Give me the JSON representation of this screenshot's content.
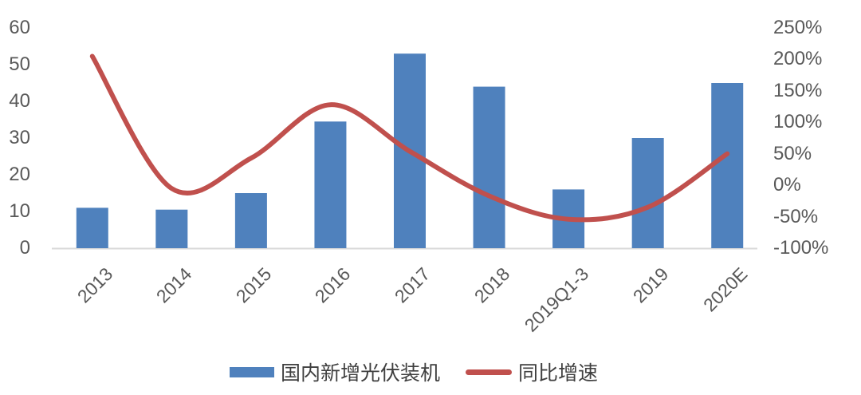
{
  "chart_data": {
    "type": "bar",
    "subtype": "bar+line combo, dual y-axis",
    "categories": [
      "2013",
      "2014",
      "2015",
      "2016",
      "2017",
      "2018",
      "2019Q1-3",
      "2019",
      "2020E"
    ],
    "series": [
      {
        "name": "国内新增光伏装机",
        "type": "bar",
        "axis": "left",
        "values": [
          11,
          10.5,
          15,
          34.5,
          53,
          44,
          16,
          30,
          45
        ]
      },
      {
        "name": "同比增速",
        "type": "line",
        "axis": "right",
        "unit": "%",
        "values": [
          205,
          -5,
          43,
          128,
          54,
          -17,
          -54,
          -35,
          50
        ]
      }
    ],
    "title": "",
    "xlabel": "",
    "ylabel": "",
    "left_axis": {
      "min": 0,
      "max": 60,
      "ticks": [
        60,
        50,
        40,
        30,
        20,
        10,
        0
      ]
    },
    "right_axis": {
      "min": -100,
      "max": 250,
      "ticks": [
        "250%",
        "200%",
        "150%",
        "100%",
        "50%",
        "0%",
        "-50%",
        "-100%"
      ]
    },
    "grid": "off",
    "legend_position": "bottom-center",
    "colors": {
      "bar": "#4f81bd",
      "line": "#c0504d",
      "axis_text": "#595959",
      "legend_text": "#3f3f3f",
      "baseline": "#d9d9d9",
      "background": "#ffffff"
    }
  }
}
